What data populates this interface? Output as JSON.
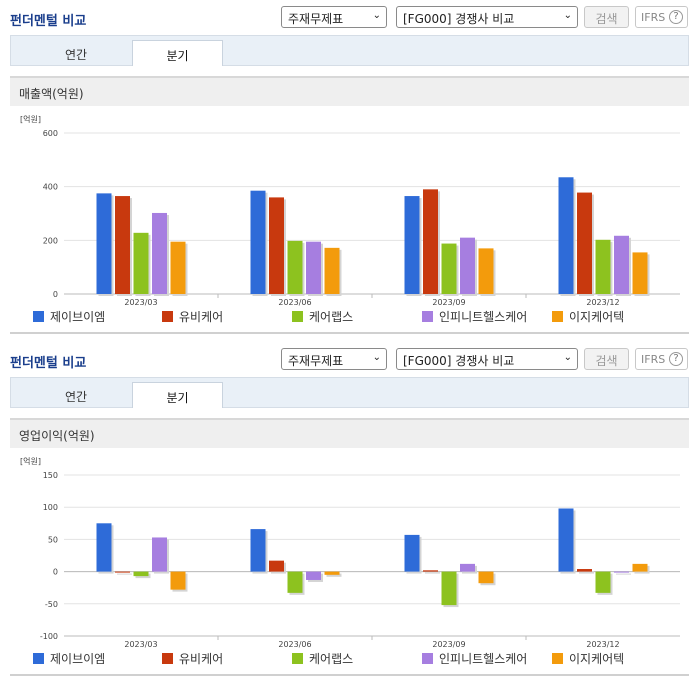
{
  "panels": [
    {
      "title": "펀더멘털 비교",
      "select1": "주재무제표",
      "select2": "[FG000] 경쟁사 비교",
      "search_label": "검색",
      "ifrs_label": "IFRS",
      "help_icon": "?",
      "tabs": [
        "연간",
        "분기"
      ],
      "active_tab": "분기",
      "section_title": "매출액(억원)"
    },
    {
      "title": "펀더멘털 비교",
      "select1": "주재무제표",
      "select2": "[FG000] 경쟁사 비교",
      "search_label": "검색",
      "ifrs_label": "IFRS",
      "help_icon": "?",
      "tabs": [
        "연간",
        "분기"
      ],
      "active_tab": "분기",
      "section_title": "영업이익(억원)"
    }
  ],
  "colors": {
    "series": [
      "#2e6bd8",
      "#c8390e",
      "#8dc21f",
      "#a67ee0",
      "#f39b0c"
    ],
    "title": "#1a3e8c"
  },
  "icons": {
    "dropdown": "chevron-down-icon",
    "help": "question-circle-icon"
  },
  "chart_data": [
    {
      "type": "bar",
      "unit_label": "[억원]",
      "categories": [
        "2023/03",
        "2023/06",
        "2023/09",
        "2023/12"
      ],
      "ylim": [
        0,
        600
      ],
      "yticks": [
        0,
        200,
        400,
        600
      ],
      "grid": true,
      "legend_position": "bottom",
      "series": [
        {
          "name": "제이브이엠",
          "values": [
            375,
            385,
            365,
            435
          ]
        },
        {
          "name": "유비케어",
          "values": [
            365,
            360,
            390,
            378
          ]
        },
        {
          "name": "케어랩스",
          "values": [
            228,
            198,
            188,
            202
          ]
        },
        {
          "name": "인피니트헬스케어",
          "values": [
            302,
            195,
            210,
            217
          ]
        },
        {
          "name": "이지케어텍",
          "values": [
            195,
            172,
            170,
            155
          ]
        }
      ]
    },
    {
      "type": "bar",
      "unit_label": "[억원]",
      "categories": [
        "2023/03",
        "2023/06",
        "2023/09",
        "2023/12"
      ],
      "ylim": [
        -100,
        150
      ],
      "yticks": [
        -100,
        -50,
        0,
        50,
        100,
        150
      ],
      "grid": true,
      "legend_position": "bottom",
      "series": [
        {
          "name": "제이브이엠",
          "values": [
            75,
            66,
            57,
            98
          ]
        },
        {
          "name": "유비케어",
          "values": [
            0,
            17,
            2,
            4
          ]
        },
        {
          "name": "케어랩스",
          "values": [
            -7,
            -33,
            -52,
            -33
          ]
        },
        {
          "name": "인피니트헬스케어",
          "values": [
            53,
            -13,
            12,
            0
          ]
        },
        {
          "name": "이지케어텍",
          "values": [
            -28,
            -5,
            -18,
            12
          ]
        }
      ]
    }
  ]
}
